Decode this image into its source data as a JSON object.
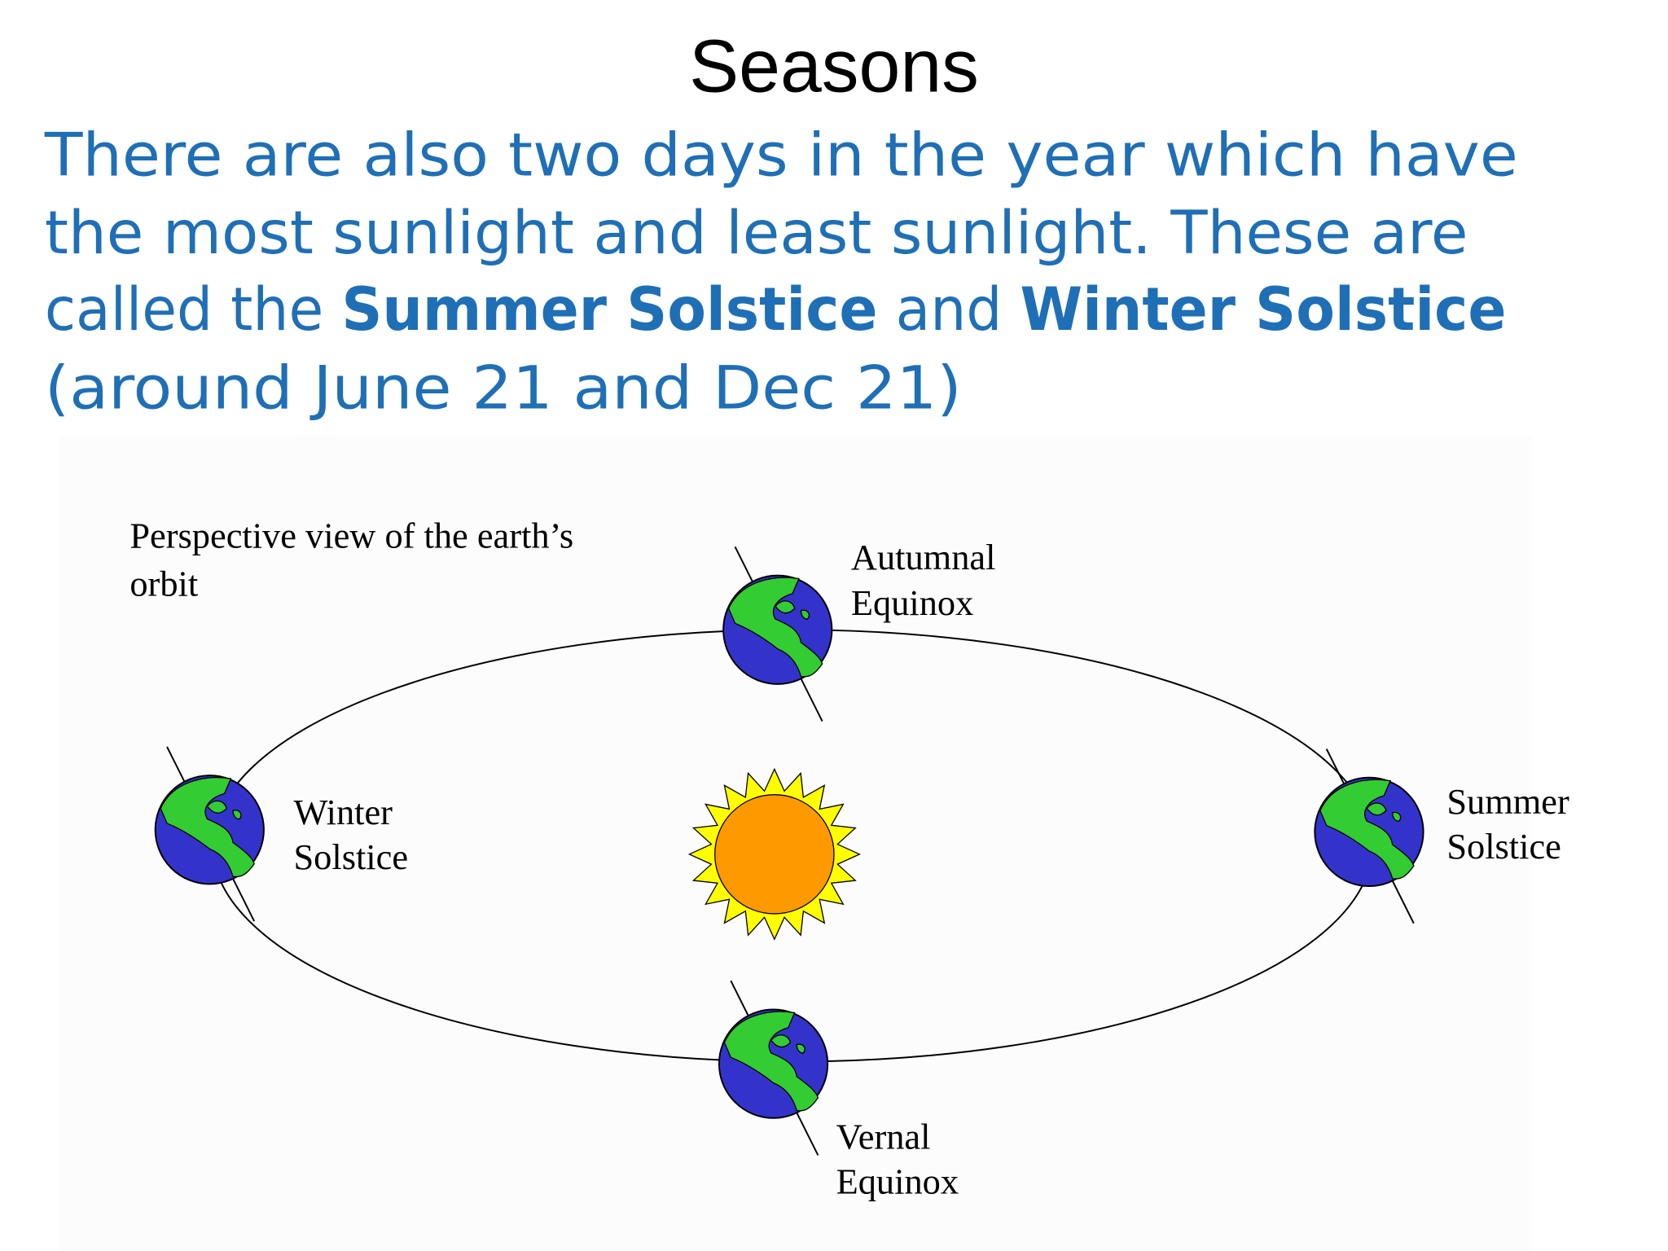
{
  "title": "Seasons",
  "body": {
    "line1": "There are also two days in the year which have",
    "line2": "the most sunlight and least sunlight. These are",
    "line3": [
      "called the ",
      "Summer Solstice",
      " and ",
      "Winter Solstice"
    ],
    "line4": "(around June 21 and Dec 21)"
  },
  "diagram": {
    "caption": [
      "Perspective view of the earth’s",
      "orbit"
    ],
    "autumnal": [
      "Autumnal",
      "Equinox"
    ],
    "winter": [
      "Winter",
      "Solstice"
    ],
    "summer": [
      "Summer",
      "Solstice"
    ],
    "vernal": [
      "Vernal",
      "Equinox"
    ]
  }
}
